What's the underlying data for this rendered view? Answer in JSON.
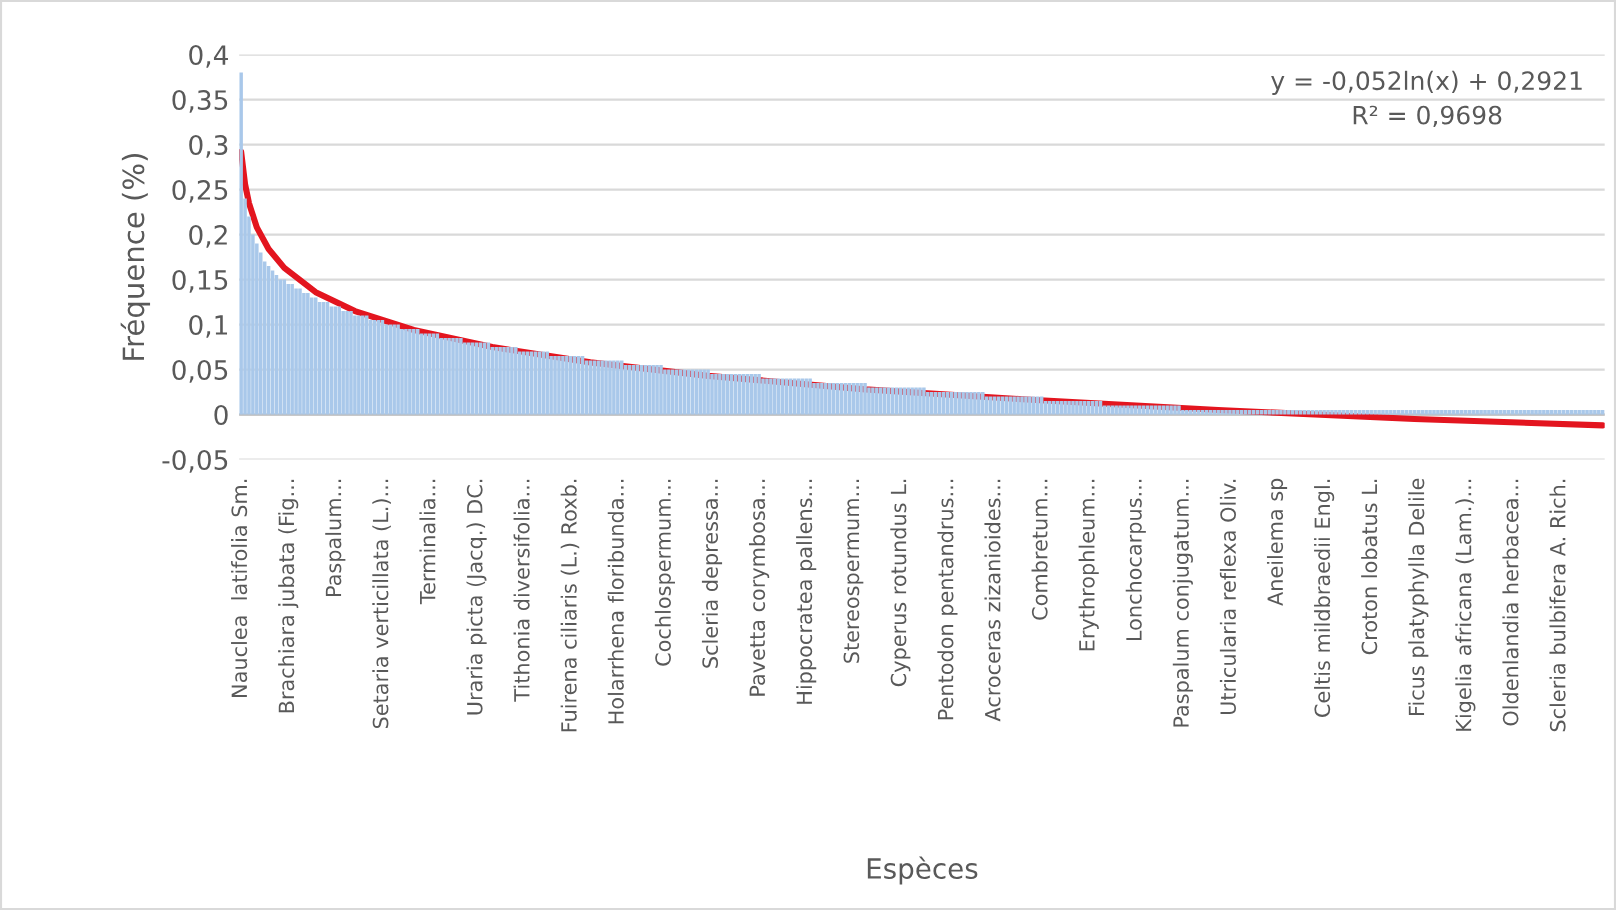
{
  "chart_data": {
    "type": "bar",
    "xlabel": "Espèces",
    "ylabel": "Fréquence (%)",
    "categories": [
      "Nauclea  latifolia Sm.",
      null,
      null,
      null,
      null,
      null,
      null,
      null,
      null,
      null,
      null,
      null,
      "Brachiara jubata (Fig...",
      null,
      null,
      null,
      null,
      null,
      null,
      null,
      null,
      null,
      null,
      null,
      "Paspalum...",
      null,
      null,
      null,
      null,
      null,
      null,
      null,
      null,
      null,
      null,
      null,
      "Setaria verticillata (L.)...",
      null,
      null,
      null,
      null,
      null,
      null,
      null,
      null,
      null,
      null,
      null,
      "Terminalia...",
      null,
      null,
      null,
      null,
      null,
      null,
      null,
      null,
      null,
      null,
      null,
      "Uraria picta (Jacq.) DC.",
      null,
      null,
      null,
      null,
      null,
      null,
      null,
      null,
      null,
      null,
      null,
      "Tithonia diversifolia...",
      null,
      null,
      null,
      null,
      null,
      null,
      null,
      null,
      null,
      null,
      null,
      "Fuirena ciliaris (L.) Roxb.",
      null,
      null,
      null,
      null,
      null,
      null,
      null,
      null,
      null,
      null,
      null,
      "Holarrhena floribunda...",
      null,
      null,
      null,
      null,
      null,
      null,
      null,
      null,
      null,
      null,
      null,
      "Cochlospermum...",
      null,
      null,
      null,
      null,
      null,
      null,
      null,
      null,
      null,
      null,
      null,
      "Scleria depressa...",
      null,
      null,
      null,
      null,
      null,
      null,
      null,
      null,
      null,
      null,
      null,
      "Pavetta corymbosa...",
      null,
      null,
      null,
      null,
      null,
      null,
      null,
      null,
      null,
      null,
      null,
      "Hippocratea pallens...",
      null,
      null,
      null,
      null,
      null,
      null,
      null,
      null,
      null,
      null,
      null,
      "Stereospermum...",
      null,
      null,
      null,
      null,
      null,
      null,
      null,
      null,
      null,
      null,
      null,
      "Cyperus rotundus L.",
      null,
      null,
      null,
      null,
      null,
      null,
      null,
      null,
      null,
      null,
      null,
      "Pentodon pentandrus...",
      null,
      null,
      null,
      null,
      null,
      null,
      null,
      null,
      null,
      null,
      null,
      "Acroceras zizanioides...",
      null,
      null,
      null,
      null,
      null,
      null,
      null,
      null,
      null,
      null,
      null,
      "Combretum...",
      null,
      null,
      null,
      null,
      null,
      null,
      null,
      null,
      null,
      null,
      null,
      "Erythrophleum...",
      null,
      null,
      null,
      null,
      null,
      null,
      null,
      null,
      null,
      null,
      null,
      "Lonchocarpus...",
      null,
      null,
      null,
      null,
      null,
      null,
      null,
      null,
      null,
      null,
      null,
      "Paspalum conjugatum...",
      null,
      null,
      null,
      null,
      null,
      null,
      null,
      null,
      null,
      null,
      null,
      "Utricularia reflexa Oliv.",
      null,
      null,
      null,
      null,
      null,
      null,
      null,
      null,
      null,
      null,
      null,
      "Aneilema sp",
      null,
      null,
      null,
      null,
      null,
      null,
      null,
      null,
      null,
      null,
      null,
      "Celtis mildbraedii Engl.",
      null,
      null,
      null,
      null,
      null,
      null,
      null,
      null,
      null,
      null,
      null,
      "Croton lobatus L.",
      null,
      null,
      null,
      null,
      null,
      null,
      null,
      null,
      null,
      null,
      null,
      "Ficus platyphylla Delile",
      null,
      null,
      null,
      null,
      null,
      null,
      null,
      null,
      null,
      null,
      null,
      "Kigelia africana (Lam.)...",
      null,
      null,
      null,
      null,
      null,
      null,
      null,
      null,
      null,
      null,
      null,
      "Oldenlandia herbacea...",
      null,
      null,
      null,
      null,
      null,
      null,
      null,
      null,
      null,
      null,
      null,
      "Scleria bulbifera A. Rich.",
      null,
      null,
      null,
      null,
      null,
      null,
      null,
      null,
      null,
      null,
      null
    ],
    "series": [
      {
        "color": "#a9c8ea",
        "values": [
          0.38,
          0.24,
          0.22,
          0.2,
          0.19,
          0.18,
          0.17,
          0.165,
          0.16,
          0.155,
          0.15,
          0.15,
          0.145,
          0.145,
          0.14,
          0.14,
          0.135,
          0.135,
          0.13,
          0.13,
          0.125,
          0.125,
          0.125,
          0.12,
          0.12,
          0.12,
          0.115,
          0.115,
          0.115,
          0.11,
          0.11,
          0.11,
          0.11,
          0.105,
          0.105,
          0.105,
          0.105,
          0.1,
          0.1,
          0.1,
          0.1,
          0.095,
          0.095,
          0.095,
          0.095,
          0.095,
          0.09,
          0.09,
          0.09,
          0.09,
          0.09,
          0.085,
          0.085,
          0.085,
          0.085,
          0.085,
          0.085,
          0.08,
          0.08,
          0.08,
          0.08,
          0.08,
          0.08,
          0.08,
          0.075,
          0.075,
          0.075,
          0.075,
          0.075,
          0.075,
          0.075,
          0.07,
          0.07,
          0.07,
          0.07,
          0.07,
          0.07,
          0.07,
          0.07,
          0.065,
          0.065,
          0.065,
          0.065,
          0.065,
          0.065,
          0.065,
          0.065,
          0.065,
          0.06,
          0.06,
          0.06,
          0.06,
          0.06,
          0.06,
          0.06,
          0.06,
          0.06,
          0.06,
          0.055,
          0.055,
          0.055,
          0.055,
          0.055,
          0.055,
          0.055,
          0.055,
          0.055,
          0.055,
          0.05,
          0.05,
          0.05,
          0.05,
          0.05,
          0.05,
          0.05,
          0.05,
          0.05,
          0.05,
          0.05,
          0.05,
          0.045,
          0.045,
          0.045,
          0.045,
          0.045,
          0.045,
          0.045,
          0.045,
          0.045,
          0.045,
          0.045,
          0.045,
          0.045,
          0.04,
          0.04,
          0.04,
          0.04,
          0.04,
          0.04,
          0.04,
          0.04,
          0.04,
          0.04,
          0.04,
          0.04,
          0.04,
          0.035,
          0.035,
          0.035,
          0.035,
          0.035,
          0.035,
          0.035,
          0.035,
          0.035,
          0.035,
          0.035,
          0.035,
          0.035,
          0.035,
          0.03,
          0.03,
          0.03,
          0.03,
          0.03,
          0.03,
          0.03,
          0.03,
          0.03,
          0.03,
          0.03,
          0.03,
          0.03,
          0.03,
          0.03,
          0.025,
          0.025,
          0.025,
          0.025,
          0.025,
          0.025,
          0.025,
          0.025,
          0.025,
          0.025,
          0.025,
          0.025,
          0.025,
          0.025,
          0.025,
          0.02,
          0.02,
          0.02,
          0.02,
          0.02,
          0.02,
          0.02,
          0.02,
          0.02,
          0.02,
          0.02,
          0.02,
          0.02,
          0.02,
          0.02,
          0.015,
          0.015,
          0.015,
          0.015,
          0.015,
          0.015,
          0.015,
          0.015,
          0.015,
          0.015,
          0.015,
          0.015,
          0.015,
          0.015,
          0.015,
          0.01,
          0.01,
          0.01,
          0.01,
          0.01,
          0.01,
          0.01,
          0.01,
          0.01,
          0.01,
          0.01,
          0.01,
          0.01,
          0.01,
          0.01,
          0.01,
          0.01,
          0.01,
          0.01,
          0.01,
          0.005,
          0.005,
          0.005,
          0.005,
          0.005,
          0.005,
          0.005,
          0.005,
          0.005,
          0.005,
          0.005,
          0.005,
          0.005,
          0.005,
          0.005,
          0.005,
          0.005,
          0.005,
          0.005,
          0.005,
          0.005,
          0.005,
          0.005,
          0.005,
          0.005,
          0.005,
          0.005,
          0.005,
          0.005,
          0.005,
          0.005,
          0.005,
          0.005,
          0.005,
          0.005,
          0.005,
          0.005,
          0.005,
          0.005,
          0.005,
          0.005,
          0.005,
          0.005,
          0.005,
          0.005,
          0.005,
          0.005,
          0.005,
          0.005,
          0.005,
          0.005,
          0.005,
          0.005,
          0.005,
          0.005,
          0.005,
          0.005,
          0.005,
          0.005,
          0.005,
          0.005,
          0.005,
          0.005,
          0.005,
          0.005,
          0.005,
          0.005,
          0.005,
          0.005,
          0.005,
          0.005,
          0.005,
          0.005,
          0.005,
          0.005,
          0.005,
          0.005,
          0.005,
          0.005,
          0.005,
          0.005,
          0.005,
          0.005,
          0.005,
          0.005,
          0.005,
          0.005,
          0.005,
          0.005,
          0.005,
          0.005,
          0.005,
          0.005,
          0.005,
          0.005,
          0.005,
          0.005,
          0.005,
          0.005,
          0.005,
          0.005,
          0.005,
          0.005,
          0.005,
          0.005,
          0.005,
          0.005,
          0.005
        ]
      },
      {
        "type": "line",
        "color": "#e3151f",
        "values": [
          0.292,
          0.256,
          0.235,
          null,
          0.208,
          null,
          null,
          0.184,
          null,
          null,
          null,
          0.163,
          null,
          null,
          null,
          null,
          null,
          null,
          null,
          0.136,
          null,
          null,
          null,
          null,
          null,
          null,
          null,
          null,
          null,
          0.115,
          null,
          null,
          null,
          null,
          null,
          null,
          null,
          null,
          null,
          null,
          null,
          null,
          null,
          null,
          0.094,
          null,
          null,
          null,
          null,
          null,
          null,
          null,
          null,
          null,
          null,
          null,
          null,
          null,
          null,
          null,
          null,
          null,
          null,
          null,
          0.075,
          null,
          null,
          null,
          null,
          null,
          null,
          null,
          null,
          null,
          null,
          null,
          null,
          null,
          null,
          null,
          null,
          null,
          null,
          null,
          null,
          null,
          null,
          null,
          null,
          0.058,
          null,
          null,
          null,
          null,
          null,
          null,
          null,
          null,
          null,
          null,
          null,
          null,
          null,
          null,
          null,
          null,
          null,
          null,
          null,
          null,
          null,
          null,
          null,
          null,
          null,
          null,
          null,
          null,
          null,
          0.043,
          null,
          null,
          null,
          null,
          null,
          null,
          null,
          null,
          null,
          null,
          null,
          null,
          null,
          null,
          null,
          null,
          null,
          null,
          null,
          null,
          null,
          null,
          null,
          null,
          null,
          null,
          null,
          null,
          null,
          null,
          null,
          null,
          null,
          null,
          null,
          null,
          null,
          null,
          null,
          0.028,
          null,
          null,
          null,
          null,
          null,
          null,
          null,
          null,
          null,
          null,
          null,
          null,
          null,
          null,
          null,
          null,
          null,
          null,
          null,
          null,
          null,
          null,
          null,
          null,
          null,
          null,
          null,
          null,
          null,
          null,
          null,
          null,
          null,
          null,
          null,
          null,
          null,
          null,
          null,
          0.017,
          null,
          null,
          null,
          null,
          null,
          null,
          null,
          null,
          null,
          null,
          null,
          null,
          null,
          null,
          null,
          null,
          null,
          null,
          null,
          null,
          null,
          null,
          null,
          null,
          null,
          null,
          null,
          null,
          null,
          null,
          null,
          null,
          null,
          null,
          null,
          null,
          null,
          null,
          null,
          null,
          null,
          null,
          null,
          null,
          null,
          null,
          null,
          null,
          null,
          0.005,
          null,
          null,
          null,
          null,
          null,
          null,
          null,
          null,
          null,
          null,
          null,
          null,
          null,
          null,
          null,
          null,
          null,
          null,
          null,
          null,
          null,
          null,
          null,
          null,
          null,
          null,
          null,
          null,
          null,
          null,
          null,
          null,
          null,
          null,
          null,
          null,
          null,
          null,
          null,
          null,
          null,
          null,
          null,
          null,
          null,
          null,
          null,
          null,
          null,
          -0.005,
          null,
          null,
          null,
          null,
          null,
          null,
          null,
          null,
          null,
          null,
          null,
          null,
          null,
          null,
          null,
          null,
          null,
          null,
          null,
          null,
          null,
          null,
          null,
          null,
          null,
          null,
          null,
          null,
          null,
          null,
          null,
          null,
          null,
          null,
          null,
          null,
          null,
          null,
          null,
          null,
          null,
          null,
          null,
          null,
          null,
          null,
          null,
          -0.012
        ]
      }
    ],
    "ylim": [
      -0.05,
      0.4
    ],
    "yticks": [
      {
        "value": -0.05,
        "label": "-0,05"
      },
      {
        "value": 0,
        "label": "0"
      },
      {
        "value": 0.05,
        "label": "0,05"
      },
      {
        "value": 0.1,
        "label": "0,1"
      },
      {
        "value": 0.15,
        "label": "0,15"
      },
      {
        "value": 0.2,
        "label": "0,2"
      },
      {
        "value": 0.25,
        "label": "0,25"
      },
      {
        "value": 0.3,
        "label": "0,3"
      },
      {
        "value": 0.35,
        "label": "0,35"
      },
      {
        "value": 0.4,
        "label": "0,4"
      }
    ],
    "grid": "y",
    "annotations": [
      "y = -0,052ln(x) + 0,2921",
      "R² = 0,9698"
    ]
  }
}
